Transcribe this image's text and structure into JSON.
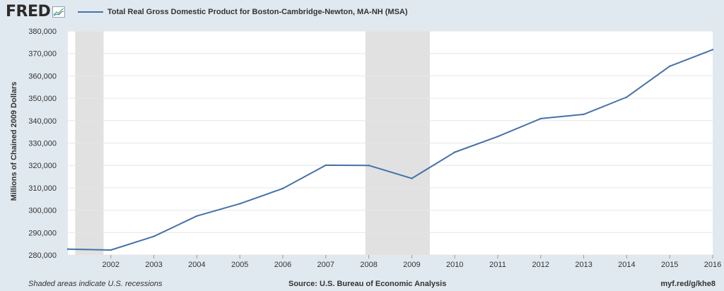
{
  "header": {
    "logo_text": "FRED",
    "legend_label": "Total Real Gross Domestic Product for Boston-Cambridge-Newton, MA-NH (MSA)"
  },
  "footer": {
    "recession_note": "Shaded areas indicate U.S. recessions",
    "source": "Source: U.S. Bureau of Economic Analysis",
    "url": "myf.red/g/khe8"
  },
  "colors": {
    "series": "#4572a7",
    "recession": "#e1e1e1",
    "background": "#e1e9f0"
  },
  "chart_data": {
    "type": "line",
    "title": "",
    "xlabel": "",
    "ylabel": "Millions of Chained 2009 Dollars",
    "ylim": [
      280000,
      380000
    ],
    "yticks": [
      280000,
      290000,
      300000,
      310000,
      320000,
      330000,
      340000,
      350000,
      360000,
      370000,
      380000
    ],
    "ytick_labels": [
      "280,000",
      "290,000",
      "300,000",
      "310,000",
      "320,000",
      "330,000",
      "340,000",
      "350,000",
      "360,000",
      "370,000",
      "380,000"
    ],
    "xlim": [
      2001,
      2016
    ],
    "xticks": [
      2002,
      2003,
      2004,
      2005,
      2006,
      2007,
      2008,
      2009,
      2010,
      2011,
      2012,
      2013,
      2014,
      2015,
      2016
    ],
    "recessions": [
      [
        2001.17,
        2001.83
      ],
      [
        2007.92,
        2009.42
      ]
    ],
    "grid": true,
    "legend_position": "top-left",
    "series": [
      {
        "name": "Total Real Gross Domestic Product for Boston-Cambridge-Newton, MA-NH (MSA)",
        "x": [
          2001,
          2002,
          2003,
          2004,
          2005,
          2006,
          2007,
          2008,
          2009,
          2010,
          2011,
          2012,
          2013,
          2014,
          2015,
          2016
        ],
        "values": [
          282600,
          282200,
          288300,
          297400,
          302900,
          309700,
          320100,
          320000,
          314200,
          325900,
          332900,
          340900,
          342800,
          350500,
          364300,
          371700
        ]
      }
    ]
  }
}
